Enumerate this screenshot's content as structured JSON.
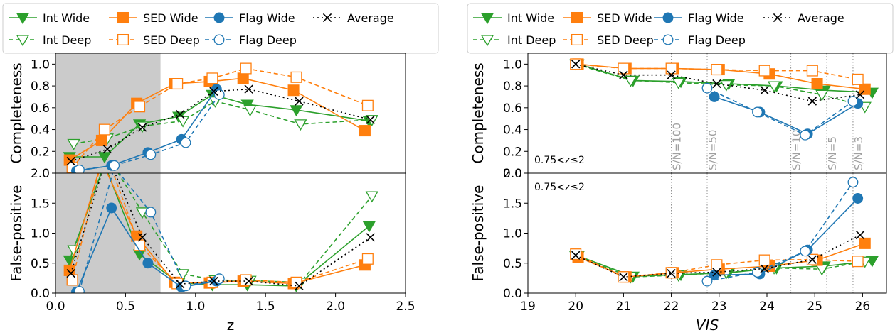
{
  "legend": [
    {
      "key": "int_wide",
      "label": "Int Wide",
      "color": "#2ca02c",
      "dash": "",
      "marker": "tri_down",
      "fill": true
    },
    {
      "key": "sed_wide",
      "label": "SED Wide",
      "color": "#ff7f0e",
      "dash": "",
      "marker": "square",
      "fill": true
    },
    {
      "key": "flag_wide",
      "label": "Flag Wide",
      "color": "#1f77b4",
      "dash": "",
      "marker": "circle",
      "fill": true
    },
    {
      "key": "average",
      "label": "Average",
      "color": "#000000",
      "dash": "2,4",
      "marker": "x",
      "fill": false
    },
    {
      "key": "int_deep",
      "label": "Int Deep",
      "color": "#2ca02c",
      "dash": "6,4",
      "marker": "tri_down",
      "fill": false
    },
    {
      "key": "sed_deep",
      "label": "SED Deep",
      "color": "#ff7f0e",
      "dash": "6,4",
      "marker": "square",
      "fill": false
    },
    {
      "key": "flag_deep",
      "label": "Flag Deep",
      "color": "#1f77b4",
      "dash": "6,4",
      "marker": "circle",
      "fill": false
    }
  ],
  "chart_data": [
    {
      "type": "line",
      "panel": "left",
      "xlabel": "z",
      "xlabel_italic": false,
      "xlim": [
        0.0,
        2.5
      ],
      "xticks": [
        "0.0",
        "0.5",
        "1.0",
        "1.5",
        "2.0",
        "2.5"
      ],
      "shaded_region": [
        0.0,
        0.75
      ],
      "subplots": [
        {
          "ylabel": "Completeness",
          "ylim": [
            0.0,
            1.1
          ],
          "yticks": [
            "0.2",
            "0.4",
            "0.6",
            "0.8",
            "1.0"
          ],
          "series": [
            {
              "key": "int_wide",
              "x": [
                0.1,
                0.35,
                0.6,
                0.88,
                1.12,
                1.37,
                1.72,
                2.24
              ],
              "y": [
                0.15,
                0.15,
                0.45,
                0.52,
                0.72,
                0.63,
                0.58,
                0.48
              ]
            },
            {
              "key": "int_deep",
              "x": [
                0.13,
                0.37,
                0.62,
                0.91,
                1.14,
                1.39,
                1.75,
                2.26
              ],
              "y": [
                0.27,
                0.32,
                0.43,
                0.48,
                0.66,
                0.58,
                0.45,
                0.49
              ]
            },
            {
              "key": "sed_wide",
              "x": [
                0.1,
                0.33,
                0.58,
                0.85,
                1.1,
                1.34,
                1.7,
                2.21
              ],
              "y": [
                0.12,
                0.3,
                0.64,
                0.82,
                0.84,
                0.87,
                0.76,
                0.39
              ]
            },
            {
              "key": "sed_deep",
              "x": [
                0.12,
                0.35,
                0.6,
                0.87,
                1.12,
                1.36,
                1.72,
                2.23
              ],
              "y": [
                0.05,
                0.4,
                0.61,
                0.82,
                0.87,
                0.96,
                0.88,
                0.62
              ]
            },
            {
              "key": "flag_wide",
              "x": [
                0.15,
                0.4,
                0.66,
                0.9,
                1.15
              ],
              "y": [
                0.02,
                0.07,
                0.19,
                0.31,
                0.77
              ]
            },
            {
              "key": "flag_deep",
              "x": [
                0.17,
                0.42,
                0.68,
                0.93,
                1.17
              ],
              "y": [
                0.03,
                0.07,
                0.17,
                0.28,
                0.72
              ]
            },
            {
              "key": "average",
              "x": [
                0.11,
                0.37,
                0.62,
                0.89,
                1.13,
                1.38,
                1.74,
                2.25
              ],
              "y": [
                0.11,
                0.22,
                0.42,
                0.54,
                0.75,
                0.77,
                0.66,
                0.49
              ]
            }
          ]
        },
        {
          "ylabel": "False-positive",
          "ylim": [
            0.0,
            2.0
          ],
          "yticks": [
            "0.0",
            "0.5",
            "1.0",
            "1.5",
            "2.0"
          ],
          "series": [
            {
              "key": "int_wide",
              "x": [
                0.1,
                0.35,
                0.6,
                0.88,
                1.12,
                1.37,
                1.72,
                2.24
              ],
              "y": [
                0.55,
                2.15,
                0.65,
                0.17,
                0.14,
                0.14,
                0.12,
                1.12
              ]
            },
            {
              "key": "int_deep",
              "x": [
                0.13,
                0.37,
                0.62,
                0.91,
                1.14,
                1.39,
                1.75,
                2.26
              ],
              "y": [
                0.72,
                2.3,
                1.35,
                0.32,
                0.22,
                0.21,
                0.18,
                1.62
              ]
            },
            {
              "key": "sed_wide",
              "x": [
                0.1,
                0.33,
                0.58,
                0.85,
                1.1,
                1.34,
                1.7,
                2.21
              ],
              "y": [
                0.38,
                2.2,
                0.95,
                0.18,
                0.17,
                0.2,
                0.16,
                0.47
              ]
            },
            {
              "key": "sed_deep",
              "x": [
                0.12,
                0.35,
                0.6,
                0.87,
                1.12,
                1.36,
                1.72,
                2.23
              ],
              "y": [
                0.22,
                2.4,
                0.8,
                0.16,
                0.18,
                0.22,
                0.18,
                0.57
              ]
            },
            {
              "key": "flag_wide",
              "x": [
                0.15,
                0.4,
                0.66,
                0.9,
                1.15
              ],
              "y": [
                0.02,
                1.42,
                0.5,
                0.1,
                0.2
              ]
            },
            {
              "key": "flag_deep",
              "x": [
                0.17,
                0.42,
                0.68,
                0.93,
                1.17
              ],
              "y": [
                0.03,
                2.1,
                1.35,
                0.12,
                0.24
              ]
            },
            {
              "key": "average",
              "x": [
                0.11,
                0.37,
                0.62,
                0.89,
                1.13,
                1.38,
                1.74,
                2.25
              ],
              "y": [
                0.33,
                2.3,
                0.93,
                0.15,
                0.2,
                0.2,
                0.12,
                0.93
              ]
            }
          ]
        }
      ]
    },
    {
      "type": "line",
      "panel": "right",
      "xlabel": "VIS",
      "xlabel_italic": true,
      "xlim": [
        19,
        26.5
      ],
      "xticks": [
        "19",
        "20",
        "21",
        "22",
        "23",
        "24",
        "25",
        "26"
      ],
      "vlines": [
        {
          "x": 22.0,
          "label": "S/N=100"
        },
        {
          "x": 22.75,
          "label": "S/N=50"
        },
        {
          "x": 24.5,
          "label": "S/N=10"
        },
        {
          "x": 25.25,
          "label": "S/N=5"
        },
        {
          "x": 25.8,
          "label": "S/N=3"
        }
      ],
      "subplots": [
        {
          "ylabel": "Completeness",
          "ylim": [
            0.0,
            1.1
          ],
          "yticks": [
            "0.0",
            "0.2",
            "0.4",
            "0.6",
            "0.8",
            "1.0"
          ],
          "annotation": "0.75<z≤2",
          "series": [
            {
              "key": "int_wide",
              "x": [
                20.05,
                21.2,
                22.2,
                23.2,
                24.2,
                25.2,
                26.2
              ],
              "y": [
                1.0,
                0.85,
                0.84,
                0.82,
                0.8,
                0.76,
                0.74
              ]
            },
            {
              "key": "int_deep",
              "x": [
                20.0,
                21.15,
                22.15,
                23.15,
                24.15,
                25.15,
                26.05
              ],
              "y": [
                1.0,
                0.85,
                0.83,
                0.81,
                0.8,
                0.72,
                0.61
              ]
            },
            {
              "key": "sed_wide",
              "x": [
                20.05,
                21.05,
                22.05,
                23.0,
                24.05,
                25.05,
                26.05
              ],
              "y": [
                1.0,
                0.96,
                0.96,
                0.95,
                0.91,
                0.82,
                0.77
              ]
            },
            {
              "key": "sed_deep",
              "x": [
                20.0,
                21.0,
                22.0,
                22.95,
                23.95,
                24.95,
                25.9
              ],
              "y": [
                1.0,
                0.96,
                0.96,
                0.95,
                0.94,
                0.94,
                0.86
              ]
            },
            {
              "key": "flag_wide",
              "x": [
                22.9,
                23.85,
                24.85,
                25.9
              ],
              "y": [
                0.7,
                0.56,
                0.36,
                0.64
              ]
            },
            {
              "key": "flag_deep",
              "x": [
                22.75,
                23.8,
                24.8,
                25.8
              ],
              "y": [
                0.78,
                0.56,
                0.35,
                0.66
              ]
            },
            {
              "key": "average",
              "x": [
                20.0,
                21.0,
                22.0,
                22.95,
                23.95,
                24.95,
                25.95
              ],
              "y": [
                1.0,
                0.9,
                0.9,
                0.82,
                0.76,
                0.66,
                0.72
              ]
            }
          ]
        },
        {
          "ylabel": "False-positive",
          "ylim": [
            0.0,
            2.0
          ],
          "yticks": [
            "0.0",
            "0.5",
            "1.0",
            "1.5",
            "2.0"
          ],
          "annotation": "0.75<z≤2",
          "series": [
            {
              "key": "int_wide",
              "x": [
                20.05,
                21.2,
                22.2,
                23.2,
                24.2,
                25.2,
                26.2
              ],
              "y": [
                0.62,
                0.28,
                0.31,
                0.34,
                0.42,
                0.45,
                0.54
              ]
            },
            {
              "key": "int_deep",
              "x": [
                20.0,
                21.15,
                22.15,
                23.15,
                24.15,
                25.15,
                26.05
              ],
              "y": [
                0.62,
                0.27,
                0.3,
                0.34,
                0.42,
                0.4,
                0.53
              ]
            },
            {
              "key": "sed_wide",
              "x": [
                20.05,
                21.05,
                22.05,
                23.0,
                24.05,
                25.05,
                26.05
              ],
              "y": [
                0.6,
                0.27,
                0.34,
                0.4,
                0.45,
                0.55,
                0.83
              ]
            },
            {
              "key": "sed_deep",
              "x": [
                20.0,
                21.0,
                22.0,
                22.95,
                23.95,
                24.95,
                25.9
              ],
              "y": [
                0.65,
                0.27,
                0.34,
                0.47,
                0.55,
                0.56,
                0.53
              ]
            },
            {
              "key": "flag_wide",
              "x": [
                22.9,
                23.85,
                24.85,
                25.9
              ],
              "y": [
                0.3,
                0.32,
                0.72,
                1.58
              ]
            },
            {
              "key": "flag_deep",
              "x": [
                22.75,
                23.8,
                24.8,
                25.8
              ],
              "y": [
                0.2,
                0.35,
                0.7,
                1.85
              ]
            },
            {
              "key": "average",
              "x": [
                20.0,
                21.0,
                22.0,
                22.95,
                23.95,
                24.95,
                25.95
              ],
              "y": [
                0.63,
                0.27,
                0.33,
                0.35,
                0.41,
                0.56,
                0.97
              ]
            }
          ]
        }
      ]
    }
  ]
}
